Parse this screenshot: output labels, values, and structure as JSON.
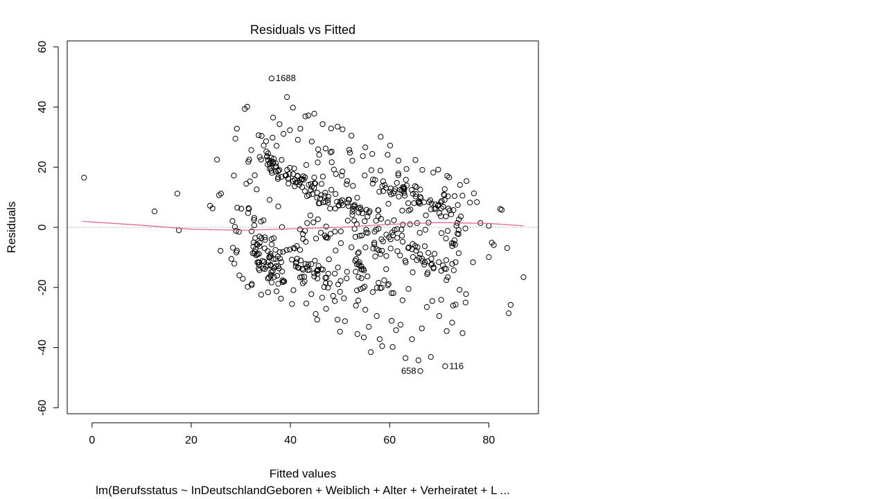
{
  "chart_data": {
    "type": "scatter",
    "title": "Residuals vs Fitted",
    "xlabel": "Fitted values",
    "ylabel": "Residuals",
    "caption": "lm(Berufsstatus ~ InDeutschlandGeboren + Weiblich + Alter + Verheiratet + L ...",
    "xlim": [
      -5,
      90
    ],
    "ylim": [
      -62,
      62
    ],
    "x_ticks": [
      0,
      20,
      40,
      60,
      80
    ],
    "y_ticks": [
      -60,
      -40,
      -20,
      0,
      20,
      40,
      60
    ],
    "reference_line": {
      "y": 0,
      "style": "dotted",
      "color": "#b0b0b0"
    },
    "smoother_color": "#e0607e",
    "smoother": [
      [
        -2,
        2
      ],
      [
        10,
        0.7
      ],
      [
        20,
        -0.6
      ],
      [
        30,
        -1
      ],
      [
        40,
        -0.5
      ],
      [
        50,
        0
      ],
      [
        60,
        1
      ],
      [
        70,
        1.6
      ],
      [
        80,
        1.3
      ],
      [
        87,
        0.5
      ]
    ],
    "labeled_points": [
      {
        "label": "1688",
        "x": 36.2,
        "y": 49.5
      },
      {
        "label": "658",
        "x": 66.2,
        "y": -47.8
      },
      {
        "label": "116",
        "x": 71.2,
        "y": -46.2
      }
    ],
    "points": [
      [
        -1.6,
        16.5
      ],
      [
        12.6,
        5.3
      ],
      [
        17.2,
        11.2
      ],
      [
        17.5,
        -1
      ],
      [
        23.8,
        7.2
      ],
      [
        24.3,
        6.3
      ],
      [
        25.2,
        22.5
      ],
      [
        25.6,
        10.7
      ],
      [
        25.9,
        -7.8
      ],
      [
        26,
        11.2
      ],
      [
        28.6,
        17.2
      ],
      [
        28.9,
        29.5
      ],
      [
        29.2,
        32.8
      ],
      [
        30.8,
        39.4
      ],
      [
        31.3,
        40.1
      ],
      [
        31.5,
        21.8
      ],
      [
        31.7,
        22.5
      ],
      [
        32.1,
        25.7
      ],
      [
        43.6,
        37.2
      ],
      [
        44.8,
        37.8
      ],
      [
        49.5,
        33.5
      ],
      [
        50.5,
        32.6
      ],
      [
        52.3,
        30.5
      ],
      [
        55.1,
        26.6
      ],
      [
        58.2,
        30.1
      ],
      [
        60.1,
        27.2
      ],
      [
        65.2,
        22.4
      ],
      [
        69.8,
        19.2
      ],
      [
        71.6,
        17.1
      ],
      [
        75.5,
        15.4
      ],
      [
        77,
        11.3
      ],
      [
        77.6,
        8.4
      ],
      [
        80,
        0.5
      ],
      [
        80.6,
        -5.1
      ],
      [
        81,
        -5.9
      ],
      [
        82.3,
        6.1
      ],
      [
        82.6,
        5.8
      ],
      [
        83.7,
        -6.9
      ],
      [
        80,
        -9.9
      ],
      [
        76.8,
        -11.6
      ],
      [
        84,
        -28.6
      ],
      [
        84.4,
        -25.8
      ],
      [
        87,
        -16.6
      ],
      [
        75.4,
        -22.2
      ],
      [
        75.3,
        -25
      ],
      [
        74.7,
        -35.2
      ],
      [
        72.6,
        -31.7
      ],
      [
        72.8,
        -26
      ],
      [
        71.5,
        -34.5
      ],
      [
        70,
        -29.5
      ],
      [
        68.3,
        -43.1
      ],
      [
        65.8,
        -44.2
      ],
      [
        63.2,
        -43.5
      ],
      [
        60.6,
        -39.8
      ],
      [
        58,
        -37.2
      ],
      [
        56.2,
        -41.5
      ],
      [
        54.8,
        -36.6
      ],
      [
        50,
        -34.7
      ],
      [
        39.3,
        43.3
      ],
      [
        40.5,
        39.8
      ],
      [
        36.5,
        36.5
      ],
      [
        37.8,
        34.3
      ],
      [
        39.9,
        32.3
      ],
      [
        42,
        32.8
      ],
      [
        43,
        36.9
      ],
      [
        33.6,
        30.6
      ],
      [
        34.2,
        30.4
      ],
      [
        46.5,
        34.3
      ],
      [
        48.2,
        32.9
      ],
      [
        28.4,
        -6.8
      ],
      [
        29.7,
        -16
      ],
      [
        30.4,
        -17.1
      ],
      [
        31.4,
        -19.8
      ],
      [
        32.2,
        -18.8
      ],
      [
        34.1,
        -22.4
      ],
      [
        35.5,
        -21.6
      ],
      [
        38.1,
        -23.7
      ],
      [
        40.3,
        -25.5
      ],
      [
        43.2,
        -25.3
      ],
      [
        45.1,
        -28.8
      ],
      [
        45.4,
        -30.7
      ],
      [
        47.2,
        -27.1
      ],
      [
        49.5,
        -30.7
      ],
      [
        51,
        -31.2
      ],
      [
        53.5,
        -35.5
      ],
      [
        55.8,
        -33.1
      ],
      [
        58.5,
        -39.5
      ],
      [
        61.3,
        -34.2
      ],
      [
        62.2,
        -32.4
      ],
      [
        64.5,
        -37.2
      ],
      [
        66.5,
        -33.6
      ],
      [
        67.5,
        -26.5
      ],
      [
        68.6,
        -24.5
      ],
      [
        70.4,
        -24.1
      ],
      [
        73.3,
        -25.7
      ],
      [
        74.1,
        -20.8
      ],
      [
        28.1,
        -10.5
      ],
      [
        28.7,
        -12.1
      ],
      [
        29.1,
        -8.4
      ],
      [
        32.6,
        -5
      ],
      [
        28.3,
        2.1
      ],
      [
        28.8,
        0.2
      ],
      [
        29.6,
        -1.5
      ],
      [
        30.1,
        6.2
      ],
      [
        31.1,
        14.5
      ],
      [
        32.8,
        17.3
      ],
      [
        33.2,
        12.6
      ],
      [
        33.8,
        23.4
      ],
      [
        34.6,
        27.2
      ],
      [
        35.1,
        28.6
      ],
      [
        35.5,
        24.6
      ],
      [
        36.4,
        29.8
      ],
      [
        37.2,
        27.1
      ],
      [
        38.6,
        31.1
      ],
      [
        41.5,
        29.1
      ],
      [
        44.3,
        28.5
      ],
      [
        45.8,
        24.1
      ],
      [
        47.1,
        26.2
      ],
      [
        48.3,
        25.2
      ],
      [
        52,
        24.8
      ],
      [
        54.6,
        23.7
      ],
      [
        56.5,
        24.4
      ],
      [
        59.6,
        24.1
      ],
      [
        61.8,
        22.2
      ],
      [
        63.4,
        19.4
      ],
      [
        66.6,
        19.1
      ],
      [
        68.8,
        18.2
      ],
      [
        72,
        16.6
      ],
      [
        74.2,
        14.1
      ],
      [
        73.1,
        10.4
      ],
      [
        76.2,
        8.2
      ],
      [
        78.3,
        1.4
      ],
      [
        63.8,
        -20.5
      ],
      [
        62.6,
        -24.3
      ],
      [
        60.4,
        -31.1
      ],
      [
        57.4,
        -29.5
      ],
      [
        55.1,
        -27.4
      ],
      [
        53.2,
        -26
      ],
      [
        50.8,
        -23.6
      ],
      [
        48.6,
        -22.8
      ],
      [
        46.4,
        -23.4
      ],
      [
        44.2,
        -22.2
      ],
      [
        42.5,
        -18.6
      ],
      [
        40.6,
        -20.9
      ],
      [
        38.4,
        -17.6
      ],
      [
        36.7,
        -16.5
      ]
    ],
    "clusters": [
      {
        "xc": 37,
        "yc": 20,
        "n": 30,
        "sx": 1.6,
        "sy": 1.8,
        "slope": -0.9
      },
      {
        "xc": 42,
        "yc": 15,
        "n": 32,
        "sx": 2.0,
        "sy": 2.0,
        "slope": -0.9
      },
      {
        "xc": 48,
        "yc": 9,
        "n": 32,
        "sx": 2.4,
        "sy": 2.0,
        "slope": -0.9
      },
      {
        "xc": 55,
        "yc": 5,
        "n": 26,
        "sx": 2.4,
        "sy": 2.2,
        "slope": -0.8
      },
      {
        "xc": 60,
        "yc": 14,
        "n": 24,
        "sx": 2.6,
        "sy": 2.5,
        "slope": -0.5
      },
      {
        "xc": 66,
        "yc": 10,
        "n": 32,
        "sx": 2.4,
        "sy": 2.6,
        "slope": -0.6
      },
      {
        "xc": 71,
        "yc": 6,
        "n": 22,
        "sx": 2.0,
        "sy": 2.4,
        "slope": -0.5
      },
      {
        "xc": 34.5,
        "yc": -8,
        "n": 40,
        "sx": 1.2,
        "sy": 4.5,
        "slope": -0.4
      },
      {
        "xc": 37,
        "yc": -14,
        "n": 24,
        "sx": 1.5,
        "sy": 3.2,
        "slope": -0.6
      },
      {
        "xc": 42,
        "yc": -13,
        "n": 26,
        "sx": 2.0,
        "sy": 3.0,
        "slope": -0.7
      },
      {
        "xc": 47,
        "yc": -17,
        "n": 24,
        "sx": 2.2,
        "sy": 2.8,
        "slope": -0.7
      },
      {
        "xc": 52,
        "yc": -12,
        "n": 22,
        "sx": 2.4,
        "sy": 3.6,
        "slope": -0.6
      },
      {
        "xc": 58,
        "yc": -6,
        "n": 22,
        "sx": 2.5,
        "sy": 3.2,
        "slope": -0.5
      },
      {
        "xc": 64,
        "yc": -8,
        "n": 24,
        "sx": 2.4,
        "sy": 3.0,
        "slope": -0.5
      },
      {
        "xc": 70,
        "yc": -13,
        "n": 20,
        "sx": 2.2,
        "sy": 3.0,
        "slope": -0.5
      },
      {
        "xc": 73,
        "yc": -3,
        "n": 16,
        "sx": 1.6,
        "sy": 3.0,
        "slope": -0.3
      },
      {
        "xc": 33,
        "yc": 3,
        "n": 16,
        "sx": 2.0,
        "sy": 4.5,
        "slope": 0
      },
      {
        "xc": 45,
        "yc": -2,
        "n": 22,
        "sx": 4.0,
        "sy": 4.0,
        "slope": 0
      },
      {
        "xc": 56,
        "yc": -18,
        "n": 20,
        "sx": 3.0,
        "sy": 3.5,
        "slope": -0.4
      },
      {
        "xc": 62,
        "yc": 1,
        "n": 18,
        "sx": 3.0,
        "sy": 3.5,
        "slope": 0
      },
      {
        "xc": 50,
        "yc": 18,
        "n": 18,
        "sx": 3.0,
        "sy": 4.0,
        "slope": -0.4
      }
    ]
  }
}
